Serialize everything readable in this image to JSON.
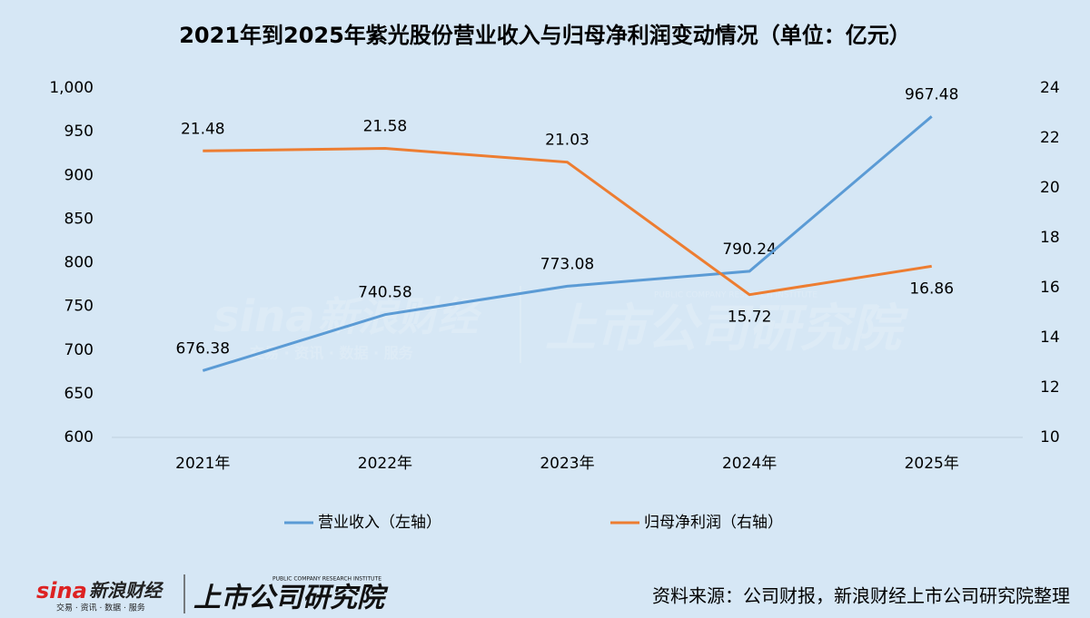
{
  "chart_data": {
    "type": "line",
    "title": "2021年到2025年紫光股份营业收入与归母净利润变动情况（单位：亿元）",
    "categories": [
      "2021年",
      "2022年",
      "2023年",
      "2024年",
      "2025年"
    ],
    "series": [
      {
        "name": "营业收入（左轴）",
        "color": "#5b9bd5",
        "values": [
          676.38,
          740.58,
          773.08,
          790.24,
          967.48
        ]
      },
      {
        "name": "归母净利润（右轴）",
        "color": "#ed7d31",
        "axis": "y2",
        "values": [
          21.48,
          21.58,
          21.03,
          15.72,
          16.86
        ]
      }
    ],
    "ylim": [
      600,
      1000
    ],
    "yticks": [
      600,
      650,
      700,
      750,
      800,
      850,
      900,
      950,
      {
        "value": 1000,
        "label": "1,000"
      }
    ],
    "y2lim": [
      10,
      24
    ],
    "y2ticks": [
      10,
      12,
      14,
      16,
      18,
      20,
      22,
      24
    ],
    "grid": false,
    "legend": "bottom",
    "source": "资料来源：公司财报，新浪财经上市公司研究院整理"
  },
  "branding": {
    "sina": "sina",
    "sina_name": "新浪财经",
    "sina_slogan": "交易 · 资讯 · 数据 · 服务",
    "institute": "上市公司研究院",
    "institute_en": "PUBLIC COMPANY RESEARCH INSTITUTE"
  }
}
